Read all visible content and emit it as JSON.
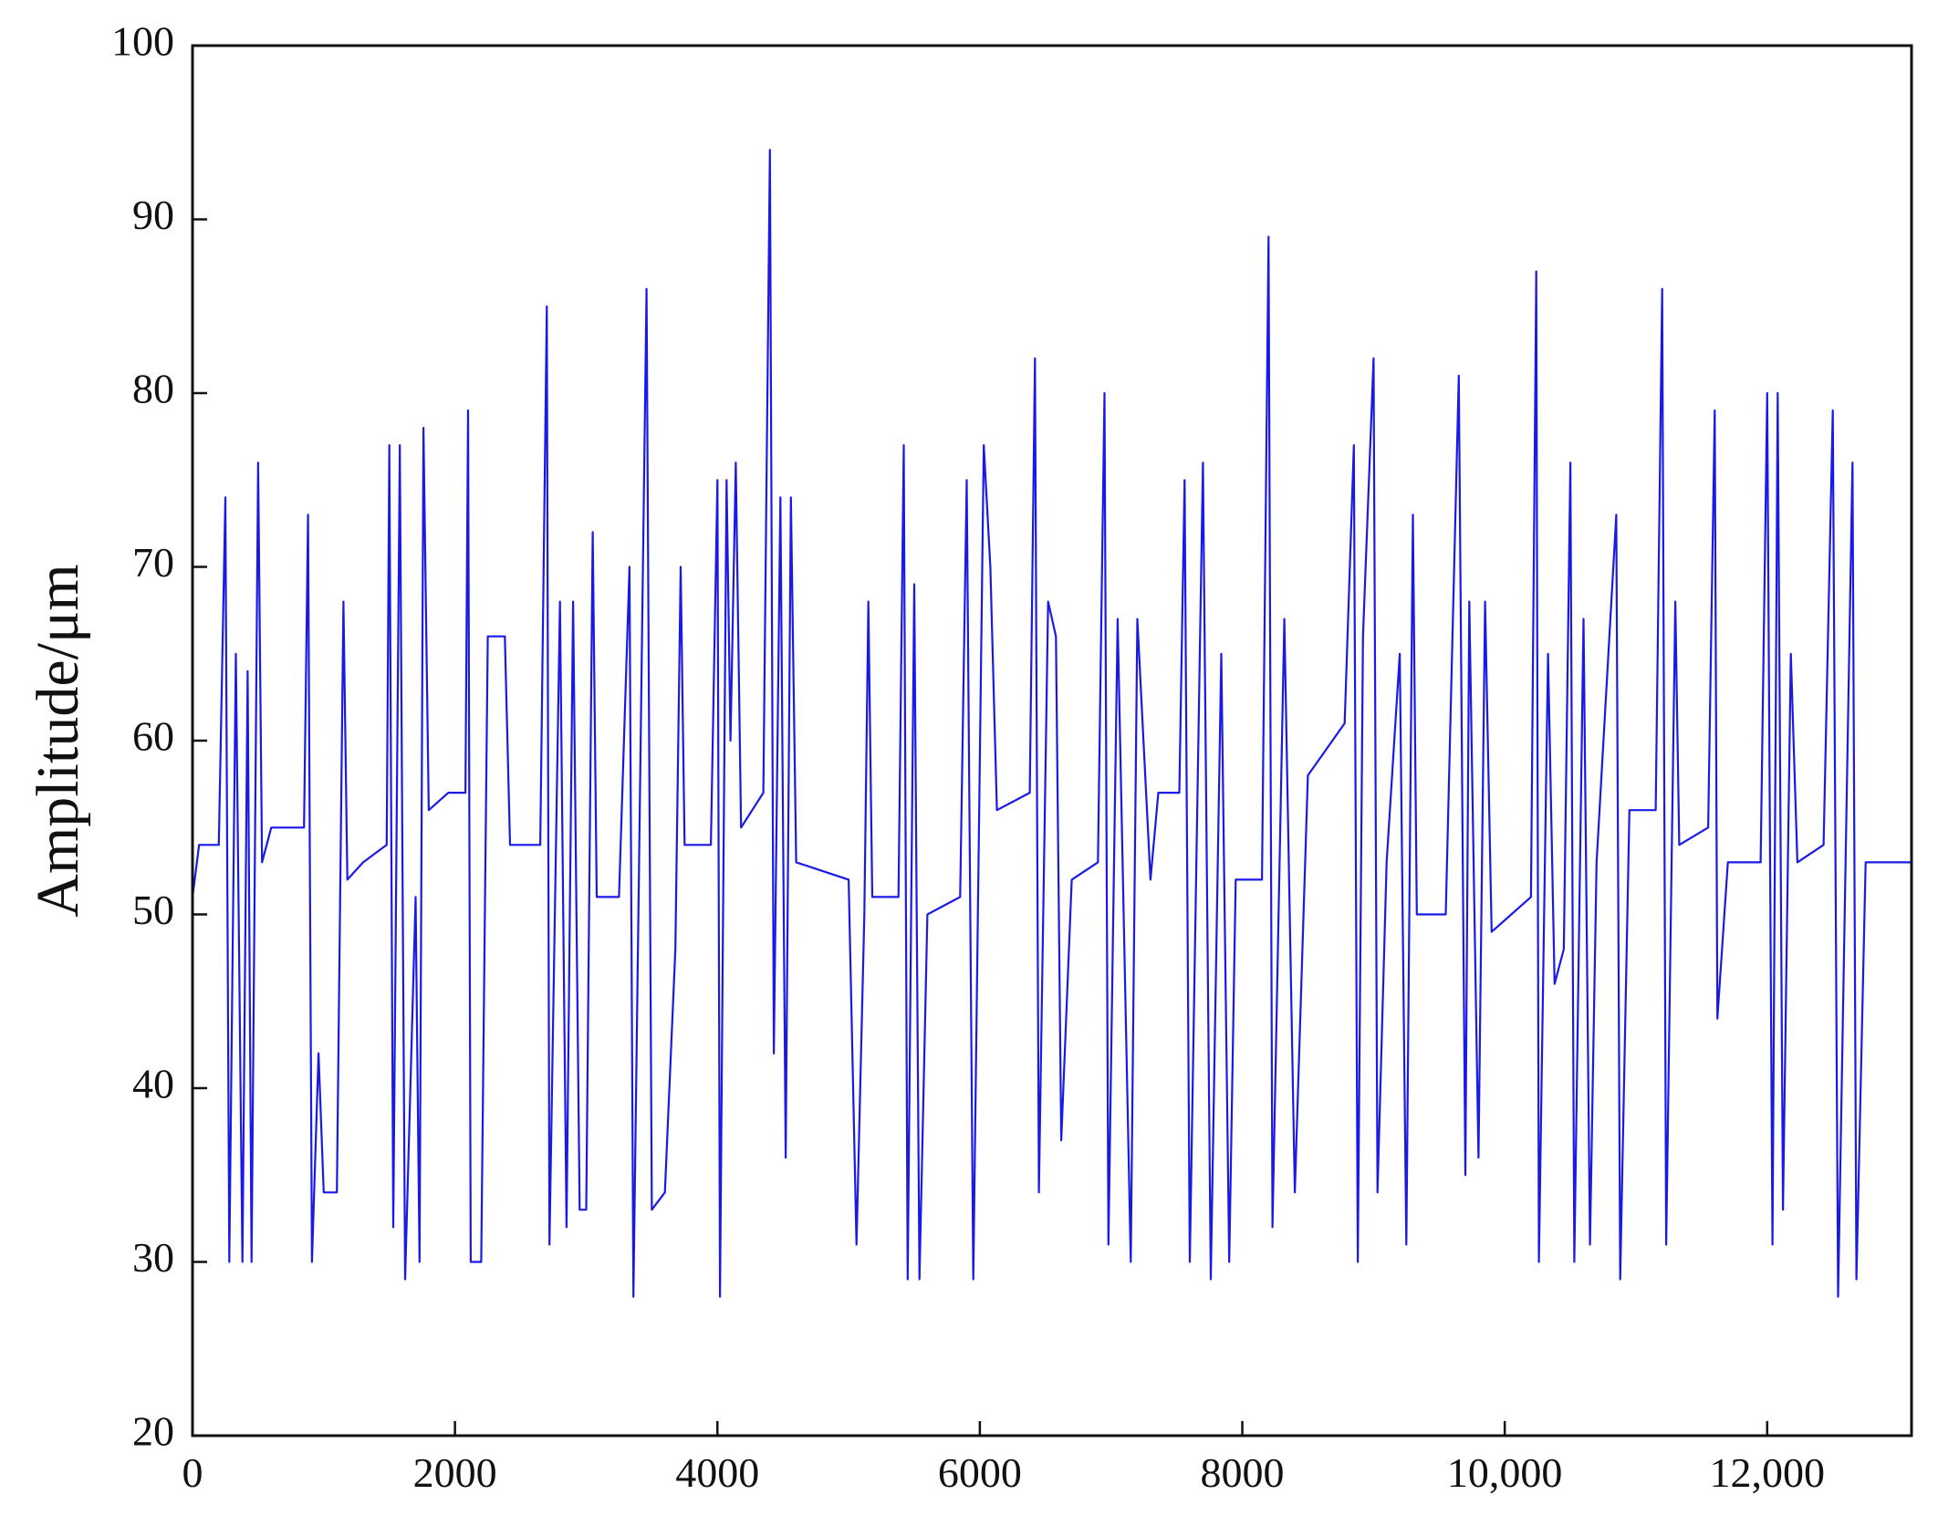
{
  "chart_data": {
    "type": "line",
    "y_label": "Amplitude/μm",
    "color": "#1a1ae6",
    "xlim": [
      0,
      13100
    ],
    "ylim": [
      20,
      100
    ],
    "xticks": [
      0,
      2000,
      4000,
      6000,
      8000,
      {
        "value": 10000,
        "label": "10,000"
      },
      {
        "value": 12000,
        "label": "12,000"
      }
    ],
    "yticks": [
      20,
      30,
      40,
      50,
      60,
      70,
      80,
      90,
      100
    ],
    "x": [
      0,
      50,
      200,
      250,
      280,
      330,
      380,
      420,
      450,
      500,
      530,
      600,
      850,
      880,
      910,
      960,
      1000,
      1100,
      1150,
      1180,
      1300,
      1480,
      1500,
      1530,
      1580,
      1620,
      1700,
      1730,
      1760,
      1800,
      1950,
      2080,
      2100,
      2120,
      2200,
      2250,
      2300,
      2380,
      2420,
      2650,
      2700,
      2720,
      2800,
      2850,
      2900,
      2950,
      3000,
      3050,
      3080,
      3250,
      3330,
      3360,
      3420,
      3460,
      3500,
      3600,
      3680,
      3720,
      3750,
      3950,
      4000,
      4020,
      4070,
      4100,
      4140,
      4180,
      4350,
      4400,
      4430,
      4480,
      4520,
      4560,
      4600,
      5000,
      5060,
      5120,
      5150,
      5180,
      5380,
      5420,
      5450,
      5500,
      5540,
      5600,
      5850,
      5900,
      5950,
      6030,
      6080,
      6130,
      6380,
      6420,
      6450,
      6520,
      6580,
      6620,
      6700,
      6900,
      6950,
      6980,
      7050,
      7150,
      7200,
      7300,
      7360,
      7520,
      7560,
      7600,
      7700,
      7760,
      7840,
      7900,
      7950,
      8150,
      8200,
      8230,
      8320,
      8400,
      8500,
      8780,
      8850,
      8880,
      8920,
      9000,
      9030,
      9100,
      9200,
      9250,
      9300,
      9330,
      9550,
      9650,
      9700,
      9730,
      9800,
      9850,
      9900,
      10200,
      10240,
      10260,
      10330,
      10380,
      10450,
      10500,
      10530,
      10600,
      10650,
      10700,
      10850,
      10880,
      10950,
      11150,
      11200,
      11230,
      11300,
      11330,
      11550,
      11600,
      11620,
      11700,
      11950,
      12000,
      12040,
      12080,
      12120,
      12180,
      12230,
      12430,
      12500,
      12540,
      12620,
      12650,
      12680,
      12750,
      13100
    ],
    "values": [
      51,
      54,
      54,
      74,
      30,
      65,
      30,
      64,
      30,
      76,
      53,
      55,
      55,
      73,
      30,
      42,
      34,
      34,
      68,
      52,
      53,
      54,
      77,
      32,
      77,
      29,
      51,
      30,
      78,
      56,
      57,
      57,
      79,
      30,
      30,
      66,
      66,
      66,
      54,
      54,
      85,
      31,
      68,
      32,
      68,
      33,
      33,
      72,
      51,
      51,
      70,
      28,
      63,
      86,
      33,
      34,
      48,
      70,
      54,
      54,
      75,
      28,
      75,
      60,
      76,
      55,
      57,
      94,
      42,
      74,
      36,
      74,
      53,
      52,
      31,
      50,
      68,
      51,
      51,
      77,
      29,
      69,
      29,
      50,
      51,
      75,
      29,
      77,
      70,
      56,
      57,
      82,
      34,
      68,
      66,
      37,
      52,
      53,
      80,
      31,
      67,
      30,
      67,
      52,
      57,
      57,
      75,
      30,
      76,
      29,
      65,
      30,
      52,
      52,
      89,
      32,
      67,
      34,
      58,
      61,
      77,
      30,
      66,
      82,
      34,
      53,
      65,
      31,
      73,
      50,
      50,
      81,
      35,
      68,
      36,
      68,
      49,
      51,
      87,
      30,
      65,
      46,
      48,
      76,
      30,
      67,
      31,
      53,
      73,
      29,
      56,
      56,
      86,
      31,
      68,
      54,
      55,
      79,
      44,
      53,
      53,
      80,
      31,
      80,
      33,
      65,
      53,
      54,
      79,
      28,
      63,
      76,
      29,
      53,
      53
    ]
  }
}
